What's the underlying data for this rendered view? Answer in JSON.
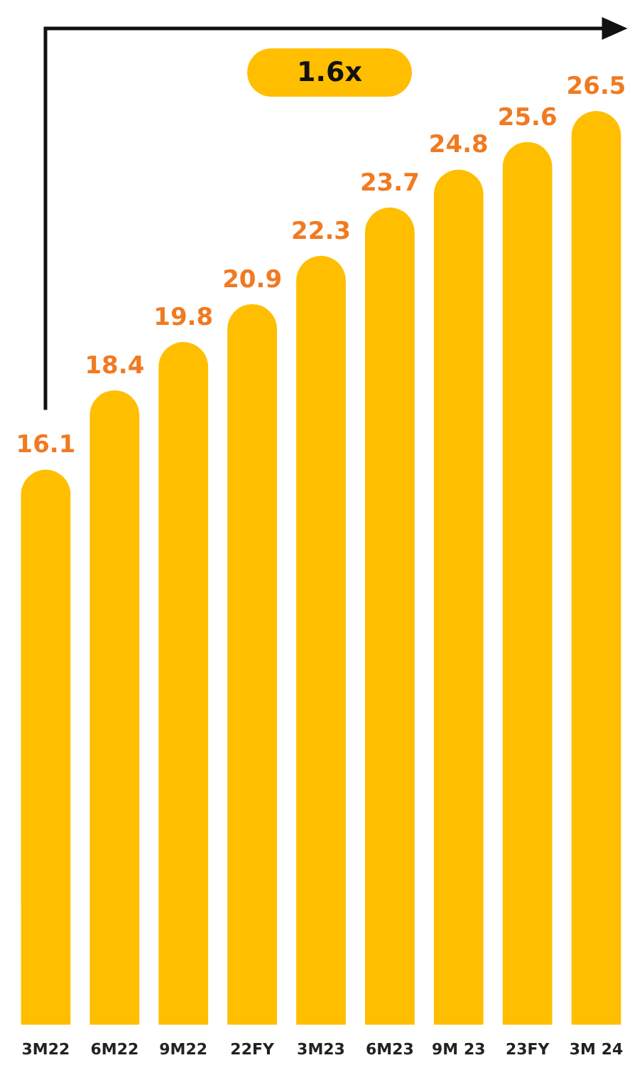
{
  "chart_data": {
    "type": "bar",
    "categories": [
      "3M22",
      "6M22",
      "9M22",
      "22FY",
      "3M23",
      "6M23",
      "9M 23",
      "23FY",
      "3M 24"
    ],
    "values": [
      16.1,
      18.4,
      19.8,
      20.9,
      22.3,
      23.7,
      24.8,
      25.6,
      26.5
    ],
    "color": "#ffbe00",
    "data_labels": true,
    "grid": false,
    "legend": false,
    "annotations": [
      "1.6x"
    ]
  }
}
